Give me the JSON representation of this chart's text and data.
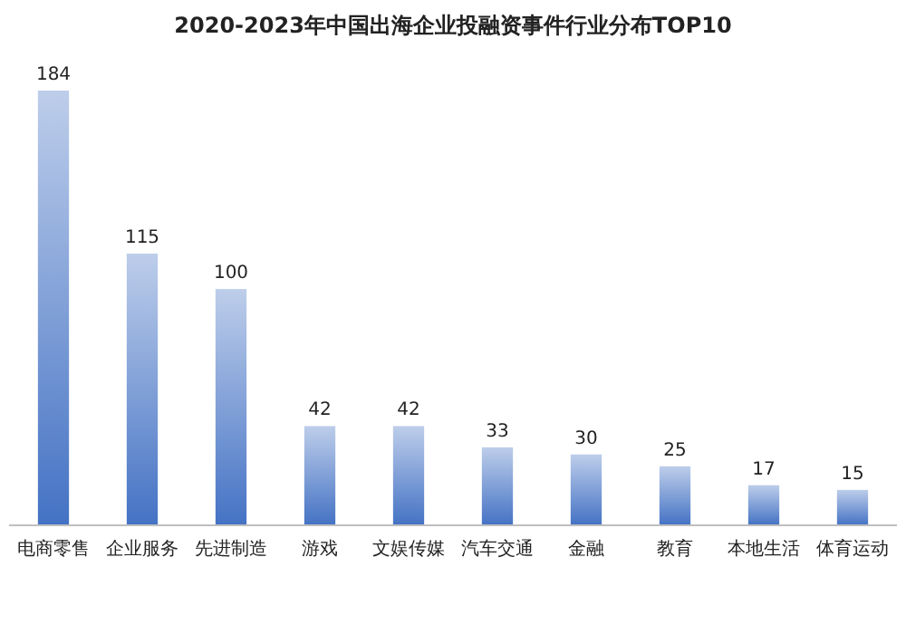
{
  "chart_data": {
    "type": "bar",
    "title": "2020-2023年中国出海企业投融资事件行业分布TOP10",
    "categories": [
      "电商零售",
      "企业服务",
      "先进制造",
      "游戏",
      "文娱传媒",
      "汽车交通",
      "金融",
      "教育",
      "本地生活",
      "体育运动"
    ],
    "values": [
      184,
      115,
      100,
      42,
      42,
      33,
      30,
      25,
      17,
      15
    ],
    "color": "#4472c4",
    "data_labels": true
  }
}
